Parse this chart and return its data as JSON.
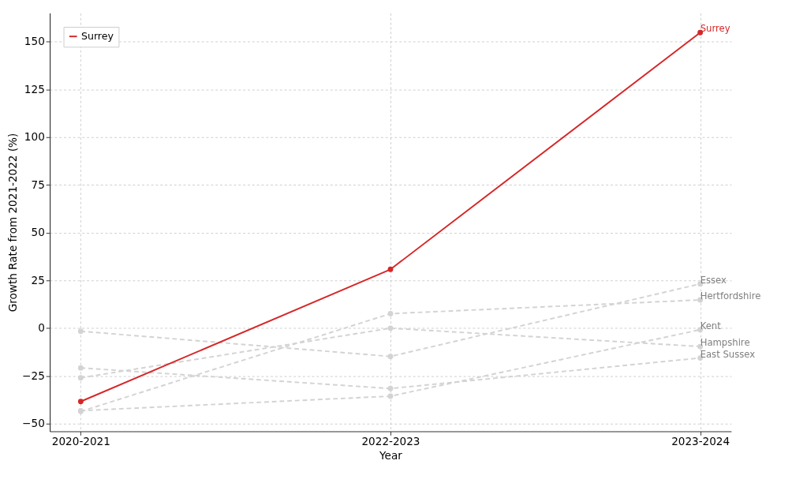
{
  "chart_data": {
    "type": "line",
    "xlabel": "Year",
    "ylabel": "Growth Rate from 2021-2022 (%)",
    "categories": [
      "2020-2021",
      "2022-2023",
      "2023-2024"
    ],
    "ylim": [
      -54,
      165
    ],
    "yticks": [
      -50,
      -25,
      0,
      25,
      50,
      75,
      100,
      125,
      150
    ],
    "grid": true,
    "legend": "top left",
    "marker": "circle",
    "series": [
      {
        "name": "Essex",
        "color": "#d3d3d3",
        "line_style": "dashed",
        "values": [
          -1.6,
          -14.8,
          23.2
        ]
      },
      {
        "name": "Hertfordshire",
        "color": "#d3d3d3",
        "line_style": "dashed",
        "values": [
          -43.6,
          7.6,
          14.8
        ]
      },
      {
        "name": "Kent",
        "color": "#d3d3d3",
        "line_style": "dashed",
        "values": [
          -43.2,
          -35.6,
          -0.8
        ]
      },
      {
        "name": "Hampshire",
        "color": "#d3d3d3",
        "line_style": "dashed",
        "values": [
          -26,
          0,
          -9.6
        ]
      },
      {
        "name": "East Sussex",
        "color": "#d3d3d3",
        "line_style": "dashed",
        "values": [
          -20.8,
          -31.6,
          -15.6
        ]
      },
      {
        "name": "Surrey",
        "color": "#d62728",
        "line_style": "solid",
        "values": [
          -38.4,
          30.8,
          154.8
        ]
      }
    ]
  }
}
